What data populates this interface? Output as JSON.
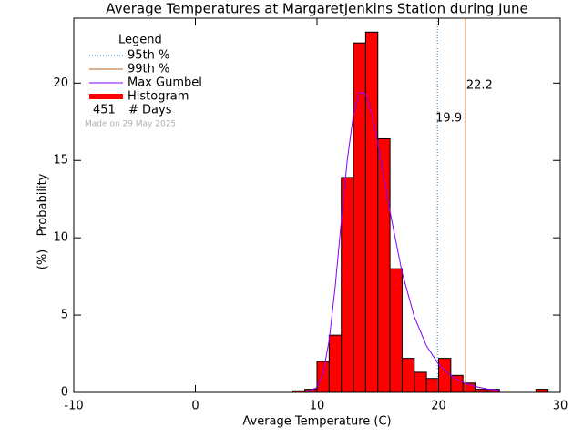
{
  "chart_data": {
    "type": "histogram",
    "title": "Average Temperatures at MargaretJenkins Station during June",
    "xlabel": "Average Temperature (C)",
    "ylabel": [
      "Probability",
      "(%)"
    ],
    "xlim": [
      -10,
      30
    ],
    "xticks": [
      -10,
      0,
      10,
      20,
      30
    ],
    "ylim": [
      0,
      24.2
    ],
    "yticks": [
      0,
      5,
      10,
      15,
      20
    ],
    "bins": [
      8,
      9,
      10,
      11,
      12,
      13,
      14,
      15,
      16,
      17,
      18,
      19,
      20,
      21,
      22,
      23,
      24,
      25,
      26,
      27,
      28,
      29
    ],
    "values": [
      0.1,
      0.2,
      2.0,
      3.7,
      13.9,
      22.6,
      23.3,
      16.4,
      8.0,
      2.2,
      1.3,
      0.9,
      2.2,
      1.1,
      0.6,
      0.2,
      0.2,
      0,
      0,
      0,
      0.2
    ],
    "name": "Histogram",
    "color": "#ff0000",
    "gumbel": {
      "name": "Max Gumbel",
      "color": "#8000ff",
      "x": [
        9,
        10,
        10.5,
        11,
        11.5,
        12,
        12.5,
        13,
        13.5,
        14,
        14.5,
        15,
        15.5,
        16,
        17,
        18,
        19,
        20,
        21,
        22,
        23,
        24,
        25
      ],
      "values": [
        0.0,
        0.31,
        1.23,
        3.37,
        6.87,
        11.1,
        15.1,
        18.0,
        19.4,
        19.3,
        18.0,
        16.1,
        13.9,
        11.7,
        7.74,
        4.9,
        3.01,
        1.81,
        1.08,
        0.64,
        0.38,
        0.22,
        0.13
      ]
    },
    "percentiles": [
      {
        "name": "95th %",
        "value": 19.9,
        "color": "#1f7fd0"
      },
      {
        "name": "99th %",
        "value": 22.2,
        "color": "#b4601e"
      }
    ],
    "legend_title": "Legend",
    "days": 451,
    "days_label": "# Days",
    "note": "Made on 29 May 2025"
  }
}
